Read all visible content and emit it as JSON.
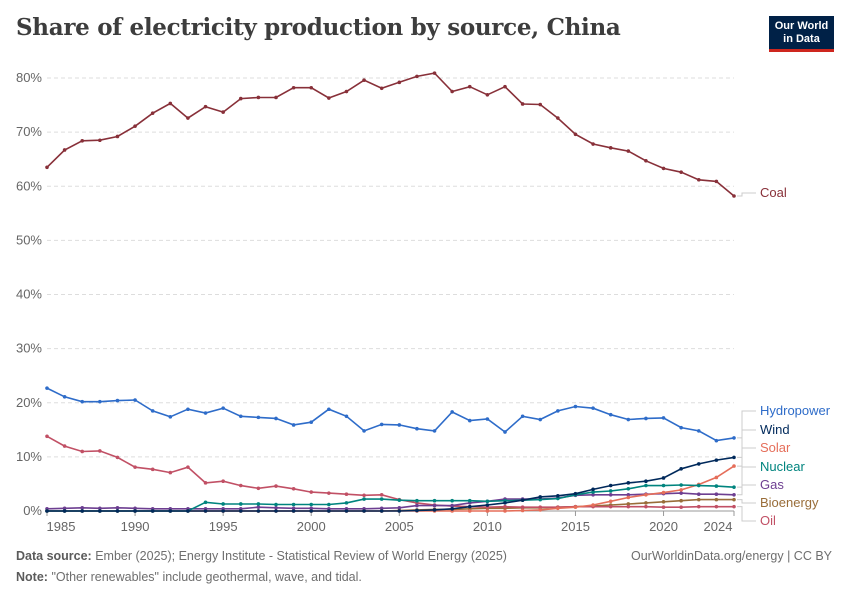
{
  "title": "Share of electricity production by source, China",
  "logo": {
    "line1": "Our World",
    "line2": "in Data"
  },
  "footer": {
    "source_label": "Data source:",
    "source_text": "Ember (2025); Energy Institute - Statistical Review of World Energy (2025)",
    "note_label": "Note:",
    "note_text": "\"Other renewables\" include geothermal, wave, and tidal.",
    "credit": "OurWorldinData.org/energy | CC BY"
  },
  "chart_data": {
    "type": "line",
    "title": "Share of electricity production by source, China",
    "xlim": [
      1985,
      2024
    ],
    "ylim": [
      0,
      80
    ],
    "grid": "horizontal dashed",
    "legend_placement": "right (line-end labels)",
    "x_ticks": [
      "1985",
      "1990",
      "1995",
      "2000",
      "2005",
      "2010",
      "2015",
      "2020",
      "2024"
    ],
    "y_ticks": [
      "0%",
      "10%",
      "20%",
      "30%",
      "40%",
      "50%",
      "60%",
      "70%",
      "80%"
    ],
    "x": [
      1985,
      1986,
      1987,
      1988,
      1989,
      1990,
      1991,
      1992,
      1993,
      1994,
      1995,
      1996,
      1997,
      1998,
      1999,
      2000,
      2001,
      2002,
      2003,
      2004,
      2005,
      2006,
      2007,
      2008,
      2009,
      2010,
      2011,
      2012,
      2013,
      2014,
      2015,
      2016,
      2017,
      2018,
      2019,
      2020,
      2021,
      2022,
      2023,
      2024
    ],
    "series": [
      {
        "name": "Coal",
        "color": "#883039",
        "values": [
          63.5,
          66.7,
          68.4,
          68.5,
          69.2,
          71.1,
          73.5,
          75.3,
          72.6,
          74.7,
          73.7,
          76.2,
          76.4,
          76.4,
          78.2,
          78.2,
          76.3,
          77.5,
          79.6,
          78.1,
          79.2,
          80.3,
          80.9,
          77.5,
          78.4,
          76.9,
          78.4,
          75.2,
          75.1,
          72.6,
          69.6,
          67.8,
          67.1,
          66.5,
          64.7,
          63.3,
          62.6,
          61.2,
          60.9,
          58.2
        ]
      },
      {
        "name": "Hydropower",
        "color": "#2e6cc9",
        "values": [
          22.7,
          21.1,
          20.2,
          20.2,
          20.4,
          20.5,
          18.5,
          17.4,
          18.8,
          18.1,
          19.0,
          17.5,
          17.3,
          17.1,
          15.9,
          16.4,
          18.8,
          17.5,
          14.8,
          16.0,
          15.9,
          15.2,
          14.8,
          18.3,
          16.7,
          17.0,
          14.6,
          17.5,
          16.9,
          18.5,
          19.3,
          19.0,
          17.8,
          16.9,
          17.1,
          17.2,
          15.4,
          14.8,
          13.0,
          13.5
        ]
      },
      {
        "name": "Wind",
        "color": "#00295b",
        "values": [
          0,
          0,
          0,
          0,
          0,
          0,
          0,
          0,
          0,
          0,
          0,
          0,
          0,
          0,
          0,
          0,
          0,
          0,
          0,
          0,
          0,
          0.1,
          0.2,
          0.4,
          0.8,
          1.1,
          1.5,
          2.0,
          2.6,
          2.8,
          3.2,
          4.0,
          4.7,
          5.2,
          5.5,
          6.1,
          7.8,
          8.7,
          9.4,
          9.9
        ]
      },
      {
        "name": "Solar",
        "color": "#e56e5a",
        "values": [
          0,
          0,
          0,
          0,
          0,
          0,
          0,
          0,
          0,
          0,
          0,
          0,
          0,
          0,
          0,
          0,
          0,
          0,
          0,
          0,
          0,
          0,
          0,
          0,
          0,
          0,
          0,
          0.1,
          0.2,
          0.5,
          0.7,
          1.1,
          1.8,
          2.5,
          3.0,
          3.4,
          3.9,
          4.9,
          6.2,
          8.3
        ]
      },
      {
        "name": "Nuclear",
        "color": "#00847e",
        "values": [
          0,
          0,
          0,
          0,
          0,
          0,
          0,
          0,
          0,
          1.6,
          1.3,
          1.3,
          1.3,
          1.2,
          1.2,
          1.2,
          1.2,
          1.5,
          2.2,
          2.2,
          2.0,
          1.9,
          1.9,
          1.9,
          1.9,
          1.8,
          1.9,
          2.0,
          2.1,
          2.3,
          3.0,
          3.5,
          3.7,
          4.1,
          4.7,
          4.7,
          4.8,
          4.7,
          4.6,
          4.4
        ]
      },
      {
        "name": "Gas",
        "color": "#6d3e91",
        "values": [
          0.4,
          0.5,
          0.6,
          0.5,
          0.6,
          0.5,
          0.4,
          0.4,
          0.4,
          0.4,
          0.4,
          0.4,
          0.7,
          0.6,
          0.5,
          0.5,
          0.4,
          0.4,
          0.4,
          0.5,
          0.6,
          1.0,
          1.0,
          1.0,
          1.5,
          1.8,
          2.2,
          2.2,
          2.2,
          2.4,
          2.9,
          3.0,
          3.0,
          3.0,
          3.1,
          3.2,
          3.3,
          3.1,
          3.1,
          3.0
        ]
      },
      {
        "name": "Bioenergy",
        "color": "#996d39",
        "values": [
          0,
          0,
          0,
          0,
          0,
          0,
          0,
          0,
          0,
          0,
          0,
          0,
          0,
          0,
          0,
          0,
          0,
          0,
          0,
          0,
          0.1,
          0.2,
          0.3,
          0.3,
          0.4,
          0.5,
          0.5,
          0.6,
          0.6,
          0.7,
          0.8,
          0.9,
          1.1,
          1.3,
          1.5,
          1.7,
          1.9,
          2.1,
          2.1,
          2.1
        ]
      },
      {
        "name": "Oil",
        "color": "#c15065",
        "values": [
          13.8,
          12.0,
          11.0,
          11.1,
          9.9,
          8.1,
          7.7,
          7.1,
          8.1,
          5.2,
          5.5,
          4.7,
          4.2,
          4.6,
          4.1,
          3.5,
          3.3,
          3.1,
          2.9,
          3.0,
          2.1,
          1.5,
          1.1,
          0.9,
          0.8,
          0.7,
          0.8,
          0.7,
          0.7,
          0.7,
          0.8,
          0.8,
          0.8,
          0.8,
          0.8,
          0.7,
          0.7,
          0.8,
          0.8,
          0.8
        ]
      }
    ]
  }
}
